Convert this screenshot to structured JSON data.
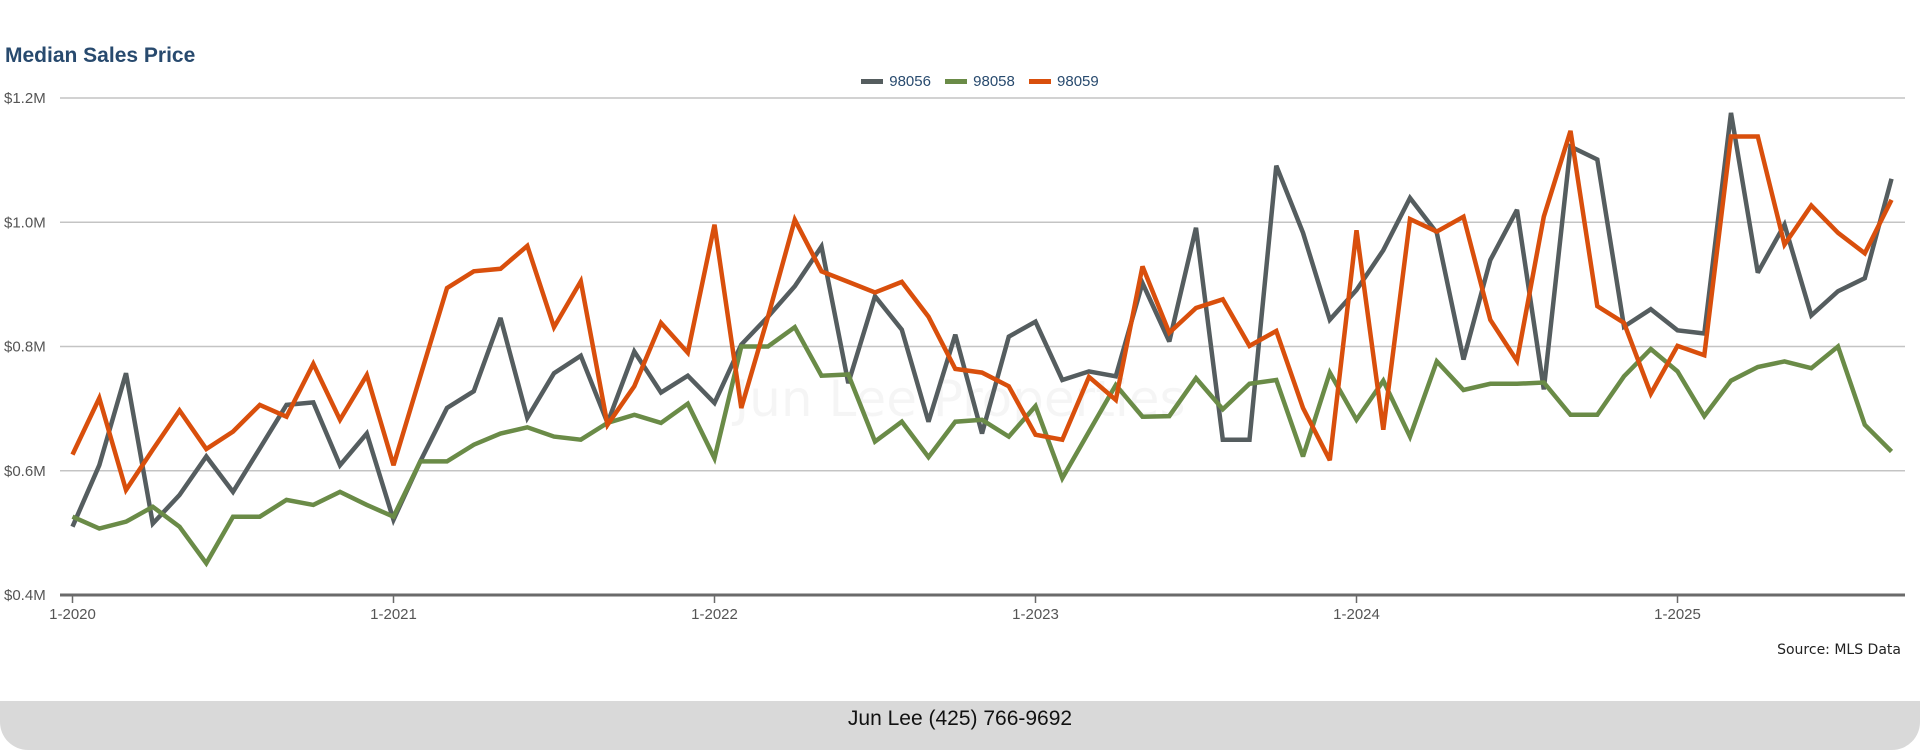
{
  "chart_data": {
    "type": "line",
    "title": "Median Sales Price",
    "xlabel": "",
    "ylabel": "",
    "ylim": [
      0.4,
      1.2
    ],
    "y_unit": "$M",
    "yticks": [
      {
        "value": 1.2,
        "label": "$1.2M"
      },
      {
        "value": 1.0,
        "label": "$1.0M"
      },
      {
        "value": 0.8,
        "label": "$0.8M"
      },
      {
        "value": 0.6,
        "label": "$0.6M"
      },
      {
        "value": 0.4,
        "label": "$0.4M"
      }
    ],
    "x_start": "2020-01",
    "x_frequency": "monthly",
    "xticks": [
      {
        "index": 0,
        "label": "1-2020"
      },
      {
        "index": 12,
        "label": "1-2021"
      },
      {
        "index": 24,
        "label": "1-2022"
      },
      {
        "index": 36,
        "label": "1-2023"
      },
      {
        "index": 48,
        "label": "1-2024"
      },
      {
        "index": 60,
        "label": "1-2025"
      }
    ],
    "grid": true,
    "legend_position": "top-center",
    "series": [
      {
        "name": "98056",
        "color": "#555d5f",
        "values": [
          0.51,
          0.609,
          0.757,
          0.515,
          0.561,
          0.623,
          0.566,
          0.636,
          0.706,
          0.71,
          0.609,
          0.66,
          0.521,
          0.615,
          0.701,
          0.728,
          0.846,
          0.685,
          0.757,
          0.785,
          0.677,
          0.792,
          0.726,
          0.753,
          0.709,
          0.803,
          0.848,
          0.897,
          0.961,
          0.741,
          0.881,
          0.827,
          0.679,
          0.819,
          0.66,
          0.816,
          0.84,
          0.746,
          0.76,
          0.752,
          0.902,
          0.808,
          0.991,
          0.65,
          0.65,
          1.091,
          0.983,
          0.843,
          0.891,
          0.955,
          1.039,
          0.983,
          0.779,
          0.939,
          1.02,
          0.731,
          1.122,
          1.101,
          0.832,
          0.86,
          0.826,
          0.821,
          1.176,
          0.919,
          0.996,
          0.85,
          0.889,
          0.91,
          1.07
        ]
      },
      {
        "name": "98058",
        "color": "#6a8b47",
        "values": [
          0.526,
          0.507,
          0.518,
          0.542,
          0.51,
          0.451,
          0.526,
          0.526,
          0.553,
          0.545,
          0.566,
          0.545,
          0.526,
          0.615,
          0.615,
          0.642,
          0.66,
          0.67,
          0.655,
          0.65,
          0.677,
          0.69,
          0.677,
          0.708,
          0.62,
          0.8,
          0.8,
          0.831,
          0.753,
          0.755,
          0.647,
          0.679,
          0.622,
          0.679,
          0.682,
          0.655,
          0.704,
          0.588,
          0.663,
          0.738,
          0.687,
          0.688,
          0.749,
          0.699,
          0.74,
          0.746,
          0.623,
          0.758,
          0.682,
          0.745,
          0.655,
          0.776,
          0.73,
          0.74,
          0.74,
          0.742,
          0.69,
          0.69,
          0.752,
          0.796,
          0.76,
          0.688,
          0.745,
          0.767,
          0.776,
          0.765,
          0.8,
          0.674,
          0.631
        ]
      },
      {
        "name": "98059",
        "color": "#d94f0c",
        "values": [
          0.626,
          0.717,
          0.569,
          0.634,
          0.697,
          0.635,
          0.663,
          0.706,
          0.687,
          0.772,
          0.682,
          0.754,
          0.609,
          0.752,
          0.894,
          0.921,
          0.925,
          0.962,
          0.831,
          0.905,
          0.674,
          0.736,
          0.838,
          0.79,
          0.996,
          0.701,
          0.848,
          1.004,
          0.921,
          0.904,
          0.887,
          0.904,
          0.848,
          0.764,
          0.758,
          0.736,
          0.658,
          0.65,
          0.751,
          0.714,
          0.929,
          0.822,
          0.862,
          0.876,
          0.801,
          0.825,
          0.701,
          0.617,
          0.987,
          0.666,
          1.005,
          0.985,
          1.009,
          0.843,
          0.777,
          1.009,
          1.147,
          0.865,
          0.838,
          0.724,
          0.801,
          0.786,
          1.138,
          1.138,
          0.964,
          1.027,
          0.983,
          0.95,
          1.036
        ]
      }
    ],
    "annotations": [
      "Source: MLS Data"
    ]
  },
  "source_note": "Source: MLS Data",
  "watermark": "Jun Lee Properties",
  "footer": {
    "contact": "Jun Lee (425) 766-9692"
  }
}
